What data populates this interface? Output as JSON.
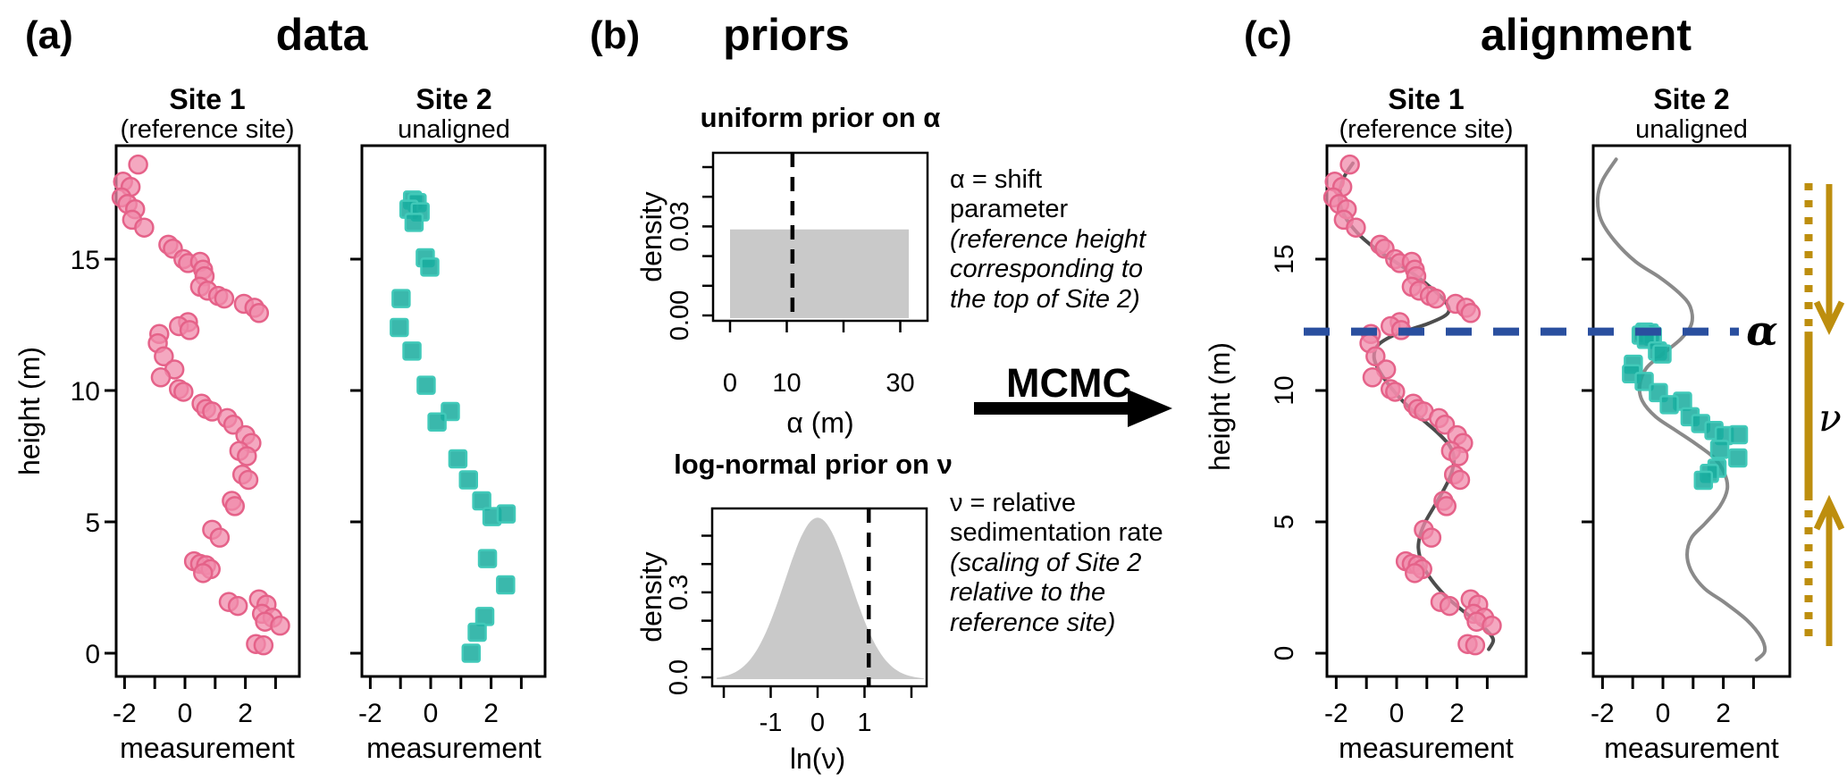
{
  "figure": {
    "panel_a": {
      "tag": "(a)",
      "title": "data",
      "site1_title": "Site 1",
      "site1_subtitle": "(reference site)",
      "site2_title": "Site 2",
      "site2_subtitle": "unaligned",
      "ylabel": "height (m)",
      "xlabel": "measurement",
      "ytick_values": [
        15,
        10,
        5,
        0
      ],
      "ytick_labels": [
        "15",
        "10",
        "5",
        "0"
      ],
      "xtick_values": [
        -2,
        -1,
        0,
        1,
        2,
        3
      ],
      "xtick_label_values": [
        -2,
        0,
        2
      ],
      "xtick_labels": [
        "-2",
        "0",
        "2"
      ]
    },
    "panel_b": {
      "tag": "(b)",
      "title": "priors",
      "mcmc_label": "MCMC",
      "prior_alpha": {
        "title": "uniform prior on α",
        "ylabel": "density",
        "xlabel": "α (m)",
        "ytick_values": [
          0,
          0.01,
          0.02,
          0.03,
          0.04,
          0.05
        ],
        "ytick_label_values": [
          0.03,
          0
        ],
        "ytick_labels": [
          "0.03",
          "0.00"
        ],
        "xtick_values": [
          0,
          10,
          20,
          30
        ],
        "xtick_label_values": [
          0,
          10,
          30
        ],
        "xtick_labels": [
          "0",
          "10",
          "30"
        ]
      },
      "prior_nu": {
        "title": "log-normal prior on ν",
        "ylabel": "density",
        "xlabel": "ln(ν)",
        "ytick_values": [
          0,
          0.1,
          0.2,
          0.3,
          0.4,
          0.5
        ],
        "ytick_label_values": [
          0.3,
          0
        ],
        "ytick_labels": [
          "0.3",
          "0.0"
        ],
        "xtick_values": [
          -2,
          -1,
          0,
          1,
          2
        ],
        "xtick_label_values": [
          -1,
          0,
          1
        ],
        "xtick_labels": [
          "-1",
          "0",
          "1"
        ]
      },
      "alpha_note_lines": [
        "α = shift",
        "parameter",
        "(reference height",
        "corresponding to",
        "the top of Site 2)"
      ],
      "alpha_note_italic_from": 2,
      "nu_note_lines": [
        "ν = relative",
        "sedimentation rate",
        "(scaling of Site 2",
        "relative to the",
        "reference site)"
      ],
      "nu_note_italic_from": 2
    },
    "panel_c": {
      "tag": "(c)",
      "title": "alignment",
      "site1_title": "Site 1",
      "site1_subtitle": "(reference site)",
      "site2_title": "Site 2",
      "site2_subtitle": "unaligned",
      "ylabel": "height (m)",
      "xlabel": "measurement",
      "ytick_values": [
        15,
        10,
        5,
        0
      ],
      "ytick_labels": [
        "15",
        "10",
        "5",
        "0"
      ],
      "xtick_values": [
        -2,
        -1,
        0,
        1,
        2,
        3
      ],
      "xtick_label_values": [
        -2,
        0,
        2
      ],
      "xtick_labels": [
        "-2",
        "0",
        "2"
      ],
      "alpha_symbol": "α",
      "nu_symbol": "ν"
    }
  },
  "colors": {
    "site1_fill": "#f08bab",
    "site1_stroke": "#e56289",
    "site2_fill": "#18ab9d",
    "site2_stroke": "#41c9b9",
    "curve_dark": "#4d4d4d",
    "curve_light": "#8a8a8a",
    "alpha_blue": "#2a4f9f",
    "gold": "#bd8e0e",
    "prior_fill": "#c9c9c9",
    "axis_black": "#000000"
  },
  "chart_data": [
    {
      "id": "site1_measurements",
      "type": "scatter",
      "marker": "circle",
      "series_name": "Site 1 (reference site)",
      "xlabel": "measurement",
      "ylabel": "height (m)",
      "xlim": [
        -2.3,
        3.8
      ],
      "ylim": [
        -0.9,
        19.3
      ],
      "points": [
        [
          -1.55,
          18.6
        ],
        [
          -2.05,
          17.95
        ],
        [
          -1.8,
          17.75
        ],
        [
          -2.1,
          17.35
        ],
        [
          -1.9,
          17.1
        ],
        [
          -1.65,
          16.9
        ],
        [
          -1.75,
          16.5
        ],
        [
          -1.35,
          16.2
        ],
        [
          -0.55,
          15.55
        ],
        [
          -0.4,
          15.4
        ],
        [
          -0.05,
          15.0
        ],
        [
          0.1,
          14.85
        ],
        [
          0.5,
          14.9
        ],
        [
          0.6,
          14.6
        ],
        [
          0.65,
          14.35
        ],
        [
          0.5,
          13.95
        ],
        [
          0.75,
          13.8
        ],
        [
          1.1,
          13.6
        ],
        [
          1.3,
          13.5
        ],
        [
          1.95,
          13.3
        ],
        [
          2.3,
          13.15
        ],
        [
          2.45,
          12.95
        ],
        [
          0.1,
          12.6
        ],
        [
          -0.2,
          12.45
        ],
        [
          0.15,
          12.3
        ],
        [
          -0.85,
          12.15
        ],
        [
          -0.9,
          11.8
        ],
        [
          -0.7,
          11.3
        ],
        [
          -0.35,
          10.8
        ],
        [
          -0.8,
          10.5
        ],
        [
          -0.2,
          10.05
        ],
        [
          -0.05,
          9.95
        ],
        [
          0.55,
          9.5
        ],
        [
          0.7,
          9.3
        ],
        [
          0.9,
          9.2
        ],
        [
          1.4,
          8.95
        ],
        [
          1.6,
          8.7
        ],
        [
          2.0,
          8.3
        ],
        [
          2.2,
          8.0
        ],
        [
          1.8,
          7.7
        ],
        [
          2.05,
          7.5
        ],
        [
          1.9,
          6.8
        ],
        [
          2.1,
          6.6
        ],
        [
          1.55,
          5.8
        ],
        [
          1.65,
          5.6
        ],
        [
          0.9,
          4.7
        ],
        [
          1.15,
          4.4
        ],
        [
          0.3,
          3.5
        ],
        [
          0.5,
          3.4
        ],
        [
          0.7,
          3.35
        ],
        [
          0.85,
          3.2
        ],
        [
          0.6,
          3.05
        ],
        [
          1.45,
          1.95
        ],
        [
          1.75,
          1.8
        ],
        [
          2.45,
          2.05
        ],
        [
          2.7,
          1.85
        ],
        [
          2.55,
          1.5
        ],
        [
          2.9,
          1.35
        ],
        [
          2.65,
          1.2
        ],
        [
          3.15,
          1.05
        ],
        [
          2.35,
          0.35
        ],
        [
          2.6,
          0.3
        ]
      ]
    },
    {
      "id": "site2_measurements",
      "type": "scatter",
      "marker": "square",
      "series_name": "Site 2 unaligned",
      "xlabel": "measurement",
      "ylabel": "height (m)",
      "xlim": [
        -2.3,
        3.8
      ],
      "ylim": [
        -0.9,
        19.3
      ],
      "points": [
        [
          -0.6,
          17.25
        ],
        [
          -0.45,
          17.15
        ],
        [
          -0.72,
          16.9
        ],
        [
          -0.35,
          16.8
        ],
        [
          -0.55,
          16.4
        ],
        [
          -0.18,
          15.05
        ],
        [
          -0.03,
          14.7
        ],
        [
          -0.98,
          13.5
        ],
        [
          -1.04,
          12.4
        ],
        [
          -0.62,
          11.5
        ],
        [
          -0.15,
          10.2
        ],
        [
          0.65,
          9.2
        ],
        [
          0.21,
          8.8
        ],
        [
          0.9,
          7.4
        ],
        [
          1.25,
          6.6
        ],
        [
          1.69,
          5.8
        ],
        [
          2.03,
          5.2
        ],
        [
          2.5,
          5.3
        ],
        [
          1.88,
          3.6
        ],
        [
          2.48,
          2.6
        ],
        [
          1.79,
          1.4
        ],
        [
          1.54,
          0.8
        ],
        [
          1.34,
          0.0
        ]
      ]
    },
    {
      "id": "uniform_prior_alpha",
      "type": "area",
      "title": "uniform prior on α",
      "xlabel": "α (m)",
      "ylabel": "density",
      "support": [
        0,
        31.5
      ],
      "density_value": 0.029,
      "dashed_line_x": 11,
      "xticks": [
        0,
        10,
        20,
        30
      ],
      "yticks": [
        0,
        0.01,
        0.02,
        0.03,
        0.04,
        0.05
      ]
    },
    {
      "id": "lognormal_prior_nu",
      "type": "density",
      "title": "log-normal prior on ν",
      "xlabel": "ln(ν)",
      "ylabel": "density",
      "mean": 0,
      "sd": 0.7,
      "peak_density": 0.57,
      "dashed_line_x": 1.09,
      "xticks": [
        -2,
        -1,
        0,
        1,
        2
      ],
      "yticks": [
        0,
        0.1,
        0.2,
        0.3,
        0.4,
        0.5
      ]
    },
    {
      "id": "alignment",
      "type": "alignment",
      "alpha_m": 12.24,
      "site2_top_height": 17.3,
      "height_scale_factor": 0.327,
      "site1_curve": [
        [
          18.65,
          -1.45
        ],
        [
          18.1,
          -1.75
        ],
        [
          17.4,
          -1.9
        ],
        [
          16.7,
          -1.75
        ],
        [
          16.0,
          -1.3
        ],
        [
          15.4,
          -0.7
        ],
        [
          14.9,
          -0.05
        ],
        [
          14.4,
          0.6
        ],
        [
          13.9,
          1.15
        ],
        [
          13.4,
          1.6
        ],
        [
          12.95,
          1.7
        ],
        [
          12.55,
          1.05
        ],
        [
          12.15,
          0.0
        ],
        [
          11.75,
          -0.6
        ],
        [
          11.3,
          -0.75
        ],
        [
          10.8,
          -0.6
        ],
        [
          10.2,
          -0.25
        ],
        [
          9.6,
          0.2
        ],
        [
          9.0,
          0.75
        ],
        [
          8.4,
          1.35
        ],
        [
          7.9,
          1.75
        ],
        [
          7.4,
          1.9
        ],
        [
          6.8,
          1.8
        ],
        [
          6.2,
          1.55
        ],
        [
          5.6,
          1.25
        ],
        [
          5.0,
          0.95
        ],
        [
          4.5,
          0.78
        ],
        [
          4.0,
          0.72
        ],
        [
          3.4,
          0.85
        ],
        [
          2.8,
          1.15
        ],
        [
          2.2,
          1.6
        ],
        [
          1.7,
          2.1
        ],
        [
          1.25,
          2.6
        ],
        [
          0.85,
          3.0
        ],
        [
          0.5,
          3.2
        ],
        [
          0.15,
          3.05
        ]
      ],
      "site2_curve": [
        [
          18.8,
          -1.55
        ],
        [
          18.0,
          -2.0
        ],
        [
          17.3,
          -2.16
        ],
        [
          16.5,
          -2.05
        ],
        [
          15.7,
          -1.6
        ],
        [
          14.9,
          -0.9
        ],
        [
          14.3,
          -0.1
        ],
        [
          13.7,
          0.55
        ],
        [
          13.2,
          0.9
        ],
        [
          12.55,
          0.95
        ],
        [
          11.97,
          0.6
        ],
        [
          11.4,
          0.0
        ],
        [
          10.85,
          -0.55
        ],
        [
          10.2,
          -0.77
        ],
        [
          9.6,
          -0.68
        ],
        [
          9.0,
          -0.24
        ],
        [
          8.5,
          0.4
        ],
        [
          7.96,
          1.1
        ],
        [
          7.43,
          1.7
        ],
        [
          6.84,
          2.04
        ],
        [
          6.25,
          2.13
        ],
        [
          5.6,
          1.89
        ],
        [
          4.93,
          1.39
        ],
        [
          4.4,
          0.95
        ],
        [
          3.76,
          0.8
        ],
        [
          3.1,
          0.95
        ],
        [
          2.45,
          1.39
        ],
        [
          1.93,
          2.04
        ],
        [
          1.26,
          2.78
        ],
        [
          0.6,
          3.25
        ],
        [
          0.07,
          3.37
        ],
        [
          -0.25,
          3.1
        ]
      ]
    }
  ]
}
